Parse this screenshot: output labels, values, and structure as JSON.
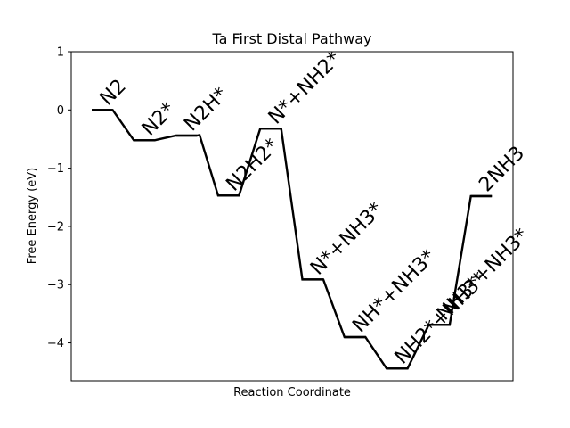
{
  "chart_data": {
    "type": "line",
    "title": "Ta First Distal Pathway",
    "xlabel": "Reaction Coordinate",
    "ylabel": "Free Energy (eV)",
    "ylim": [
      -4.65,
      1.0
    ],
    "yticks": [
      1,
      0,
      -1,
      -2,
      -3,
      -4
    ],
    "ytick_labels": [
      "1",
      "0",
      "−1",
      "−2",
      "−3",
      "−4"
    ],
    "xticks": "none",
    "grid": false,
    "legend": "none",
    "line_color": "#000000",
    "states": [
      {
        "label": "N2",
        "energy": 0.0
      },
      {
        "label": "N2*",
        "energy": -0.52
      },
      {
        "label": "N2H*",
        "energy": -0.44
      },
      {
        "label": "N2H2*",
        "energy": -1.47
      },
      {
        "label": "N*+NH2*",
        "energy": -0.32
      },
      {
        "label": "N*+NH3*",
        "energy": -2.91
      },
      {
        "label": "NH*+NH3*",
        "energy": -3.9
      },
      {
        "label": "NH2*+NH3*",
        "energy": -4.44
      },
      {
        "label": "NH3*+NH3*",
        "energy": -3.69
      },
      {
        "label": "2NH3",
        "energy": -1.48
      }
    ],
    "sub_states": [
      {
        "after": 1,
        "energy": -0.51
      },
      {
        "after": 2,
        "energy": -0.43
      }
    ]
  }
}
